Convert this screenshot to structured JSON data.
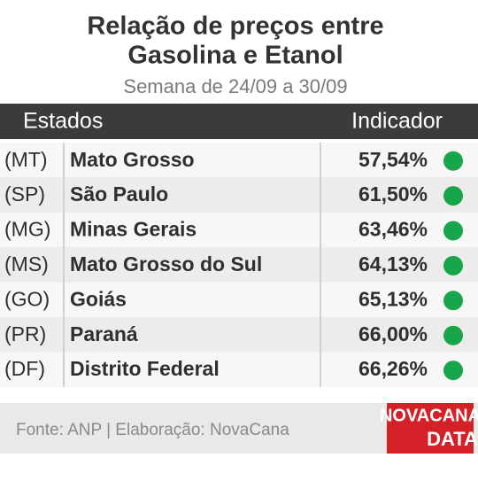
{
  "header": {
    "title_lines": [
      "Relação de preços entre",
      "Gasolina e Etanol"
    ],
    "subtitle": "Semana de 24/09 a 30/09"
  },
  "table": {
    "columns": [
      "Estados",
      "Indicador"
    ],
    "rows": [
      [
        "(MT)",
        "Mato Grosso",
        "57,54%"
      ],
      [
        "(SP)",
        "São Paulo",
        "61,50%"
      ],
      [
        "(MG)",
        "Minas Gerais",
        "63,46%"
      ],
      [
        "(MS)",
        "Mato Grosso do Sul",
        "64,13%"
      ],
      [
        "(GO)",
        "Goiás",
        "65,13%"
      ],
      [
        "(PR)",
        "Paraná",
        "66,00%"
      ],
      [
        "(DF)",
        "Distrito Federal",
        "66,26%"
      ]
    ]
  },
  "footer": {
    "source": "Fonte: ANP | Elaboração: NovaCana",
    "logo_lines": [
      "NOVACANA",
      "DATA"
    ]
  }
}
